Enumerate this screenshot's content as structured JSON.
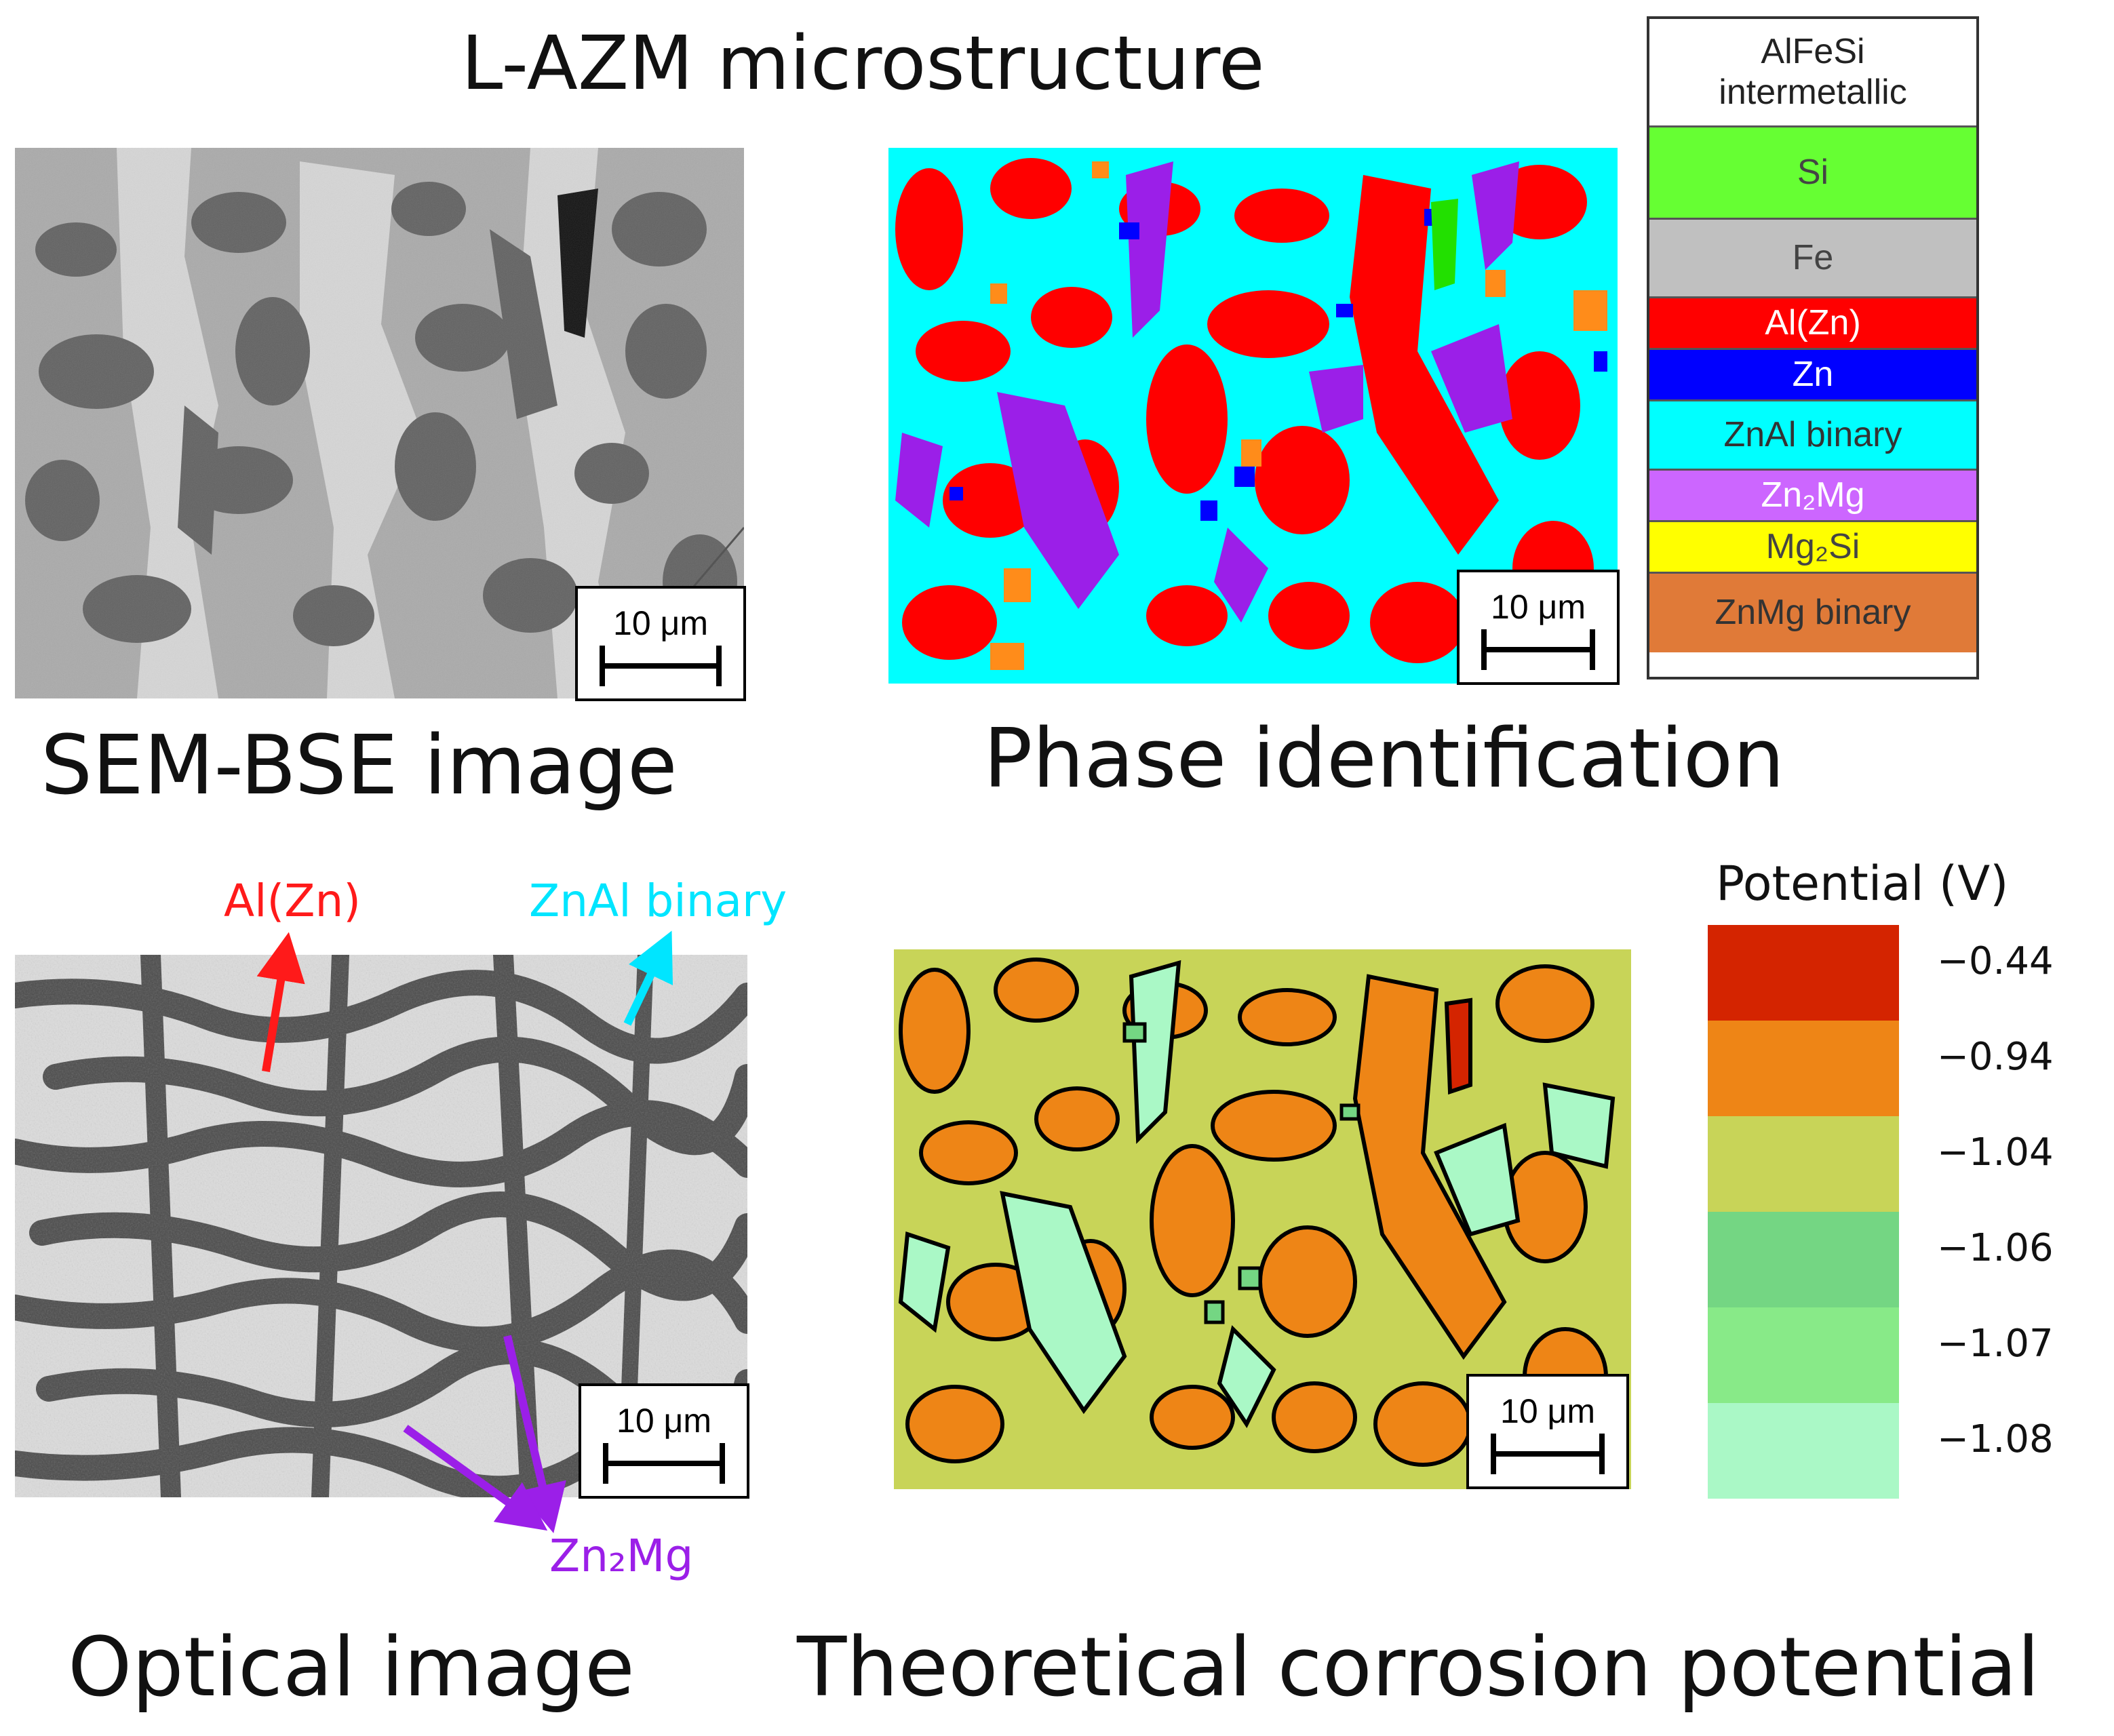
{
  "title": "L-AZM microstructure",
  "captions": {
    "sem": "SEM-BSE image",
    "phase": "Phase identification",
    "optical": "Optical image",
    "potential": "Theoretical corrosion potential"
  },
  "scalebar_label": "10 μm",
  "phase_legend": [
    {
      "label": "AlFeSi\nintermetallic",
      "color": "#ffffff",
      "text_color": "#222222"
    },
    {
      "label": "Si",
      "color": "#66ff33",
      "text_color": "#444444"
    },
    {
      "label": "Fe",
      "color": "#c0c0c0",
      "text_color": "#444444"
    },
    {
      "label": "Al(Zn)",
      "color": "#ff0000",
      "text_color": "#ffffff"
    },
    {
      "label": "Zn",
      "color": "#0000ff",
      "text_color": "#ffffff"
    },
    {
      "label": "ZnAl binary",
      "color": "#00ffff",
      "text_color": "#333333"
    },
    {
      "label": "Zn₂Mg",
      "color": "#cc66ff",
      "text_color": "#ffffff"
    },
    {
      "label": "Mg₂Si",
      "color": "#ffff00",
      "text_color": "#444444"
    },
    {
      "label": "ZnMg binary",
      "color": "#e07a38",
      "text_color": "#333333"
    }
  ],
  "optical_annotations": {
    "alzn": {
      "label": "Al(Zn)",
      "color": "#ff1a1a"
    },
    "znal": {
      "label": "ZnAl binary",
      "color": "#00e5ff"
    },
    "zn2mg": {
      "label": "Zn₂Mg",
      "color": "#9b1fe8"
    }
  },
  "colorbar": {
    "title": "Potential (V)",
    "ticks": [
      "−0.44",
      "−0.94",
      "−1.04",
      "−1.06",
      "−1.07",
      "−1.08"
    ],
    "colors": [
      "#d42400",
      "#ee8516",
      "#c8d458",
      "#74d683",
      "#88ea88",
      "#aaf8c6"
    ]
  }
}
